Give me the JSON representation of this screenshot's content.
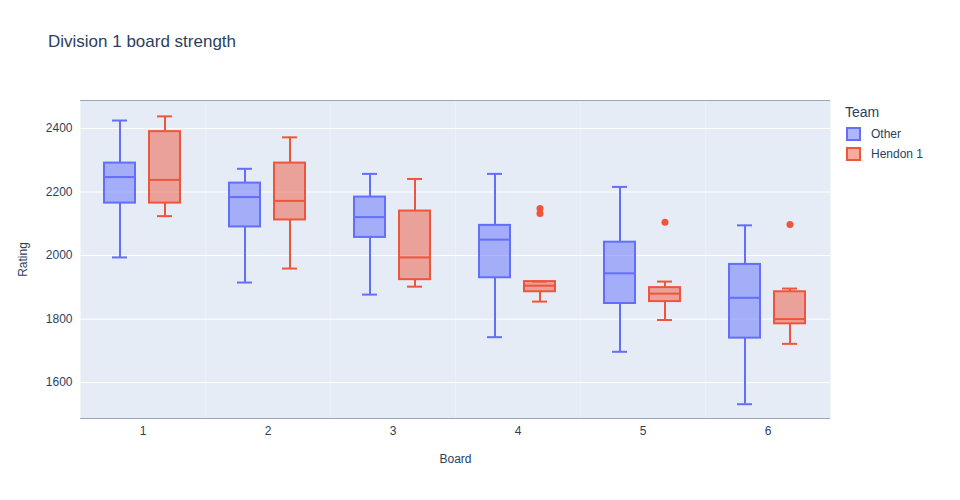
{
  "chart_data": {
    "type": "box",
    "title": "Division 1 board strength",
    "x_label": "Board",
    "y_label": "Rating",
    "legend_title": "Team",
    "legend": "right",
    "grid": true,
    "categories": [
      "1",
      "2",
      "3",
      "4",
      "5",
      "6"
    ],
    "ylim": [
      1487,
      2488
    ],
    "yticks": [
      1600,
      1800,
      2000,
      2200,
      2400
    ],
    "series": [
      {
        "name": "Other",
        "color": "#636efa",
        "values": [
          {
            "min": 1994,
            "q1": 2165,
            "median": 2247,
            "q3": 2291,
            "max": 2425,
            "outliers": []
          },
          {
            "min": 1915,
            "q1": 2090,
            "median": 2184,
            "q3": 2228,
            "max": 2273,
            "outliers": []
          },
          {
            "min": 1877,
            "q1": 2057,
            "median": 2121,
            "q3": 2184,
            "max": 2257,
            "outliers": []
          },
          {
            "min": 1743,
            "q1": 1930,
            "median": 2050,
            "q3": 2095,
            "max": 2257,
            "outliers": []
          },
          {
            "min": 1697,
            "q1": 1849,
            "median": 1944,
            "q3": 2042,
            "max": 2216,
            "outliers": []
          },
          {
            "min": 1532,
            "q1": 1740,
            "median": 1867,
            "q3": 1972,
            "max": 2095,
            "outliers": []
          }
        ]
      },
      {
        "name": "Hendon 1",
        "color": "#EF553B",
        "values": [
          {
            "min": 2124,
            "q1": 2165,
            "median": 2238,
            "q3": 2390,
            "max": 2438,
            "outliers": []
          },
          {
            "min": 1959,
            "q1": 2112,
            "median": 2172,
            "q3": 2291,
            "max": 2372,
            "outliers": []
          },
          {
            "min": 1902,
            "q1": 1924,
            "median": 1994,
            "q3": 2140,
            "max": 2241,
            "outliers": []
          },
          {
            "min": 1855,
            "q1": 1886,
            "median": 1905,
            "q3": 1918,
            "max": 1918,
            "outliers": [
              2148,
              2132
            ]
          },
          {
            "min": 1797,
            "q1": 1855,
            "median": 1880,
            "q3": 1899,
            "max": 1918,
            "outliers": [
              2105
            ]
          },
          {
            "min": 1722,
            "q1": 1785,
            "median": 1800,
            "q3": 1886,
            "max": 1896,
            "outliers": [
              2098
            ]
          }
        ]
      }
    ]
  }
}
